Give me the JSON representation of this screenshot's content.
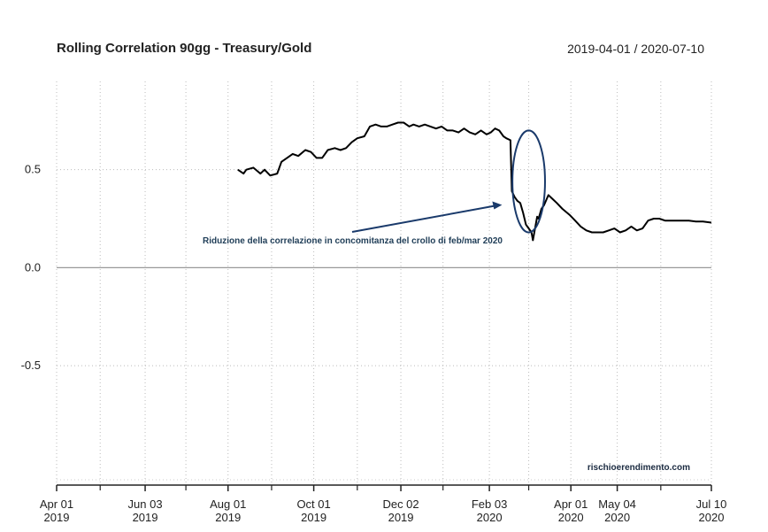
{
  "chart_data": {
    "type": "line",
    "title": "Rolling Correlation 90gg - Treasury/Gold",
    "date_range": "2019-04-01 / 2020-07-10",
    "ylim": [
      -1.1,
      0.95
    ],
    "y_ticks": [
      {
        "value": 0.5,
        "label": "0.5"
      },
      {
        "value": 0.0,
        "label": "0.0"
      },
      {
        "value": -0.5,
        "label": "-0.5"
      }
    ],
    "x_domain_days": [
      0,
      466
    ],
    "x_ticks": [
      {
        "day": 0,
        "label": [
          "Apr 01",
          "2019"
        ]
      },
      {
        "day": 63,
        "label": [
          "Jun 03",
          "2019"
        ]
      },
      {
        "day": 122,
        "label": [
          "Aug 01",
          "2019"
        ]
      },
      {
        "day": 183,
        "label": [
          "Oct 01",
          "2019"
        ]
      },
      {
        "day": 245,
        "label": [
          "Dec 02",
          "2019"
        ]
      },
      {
        "day": 308,
        "label": [
          "Feb 03",
          "2020"
        ]
      },
      {
        "day": 366,
        "label": [
          "Apr 01",
          "2020"
        ]
      },
      {
        "day": 399,
        "label": [
          "May 04",
          "2020"
        ]
      },
      {
        "day": 466,
        "label": [
          "Jul 10",
          "2020"
        ]
      }
    ],
    "minor_tick_days": [
      31,
      92,
      153,
      214,
      275,
      336,
      430
    ],
    "series": [
      {
        "name": "Rolling Correlation 90gg",
        "x": [
          129,
          133,
          135,
          140,
          145,
          148,
          152,
          157,
          160,
          164,
          168,
          172,
          177,
          181,
          185,
          189,
          193,
          198,
          202,
          206,
          210,
          214,
          219,
          223,
          227,
          231,
          235,
          239,
          243,
          247,
          251,
          254,
          258,
          262,
          266,
          270,
          274,
          278,
          282,
          286,
          290,
          294,
          298,
          302,
          306,
          309,
          312,
          315,
          318,
          320,
          323,
          324,
          326,
          328,
          330,
          332,
          333,
          334,
          336,
          338,
          339,
          341,
          342,
          343,
          345,
          347,
          350,
          353,
          356,
          360,
          365,
          369,
          373,
          377,
          381,
          385,
          389,
          393,
          397,
          401,
          405,
          409,
          413,
          417,
          421,
          425,
          429,
          433,
          437,
          441,
          445,
          450,
          455,
          460,
          466
        ],
        "values": [
          0.5,
          0.48,
          0.5,
          0.51,
          0.48,
          0.5,
          0.47,
          0.48,
          0.54,
          0.56,
          0.58,
          0.57,
          0.6,
          0.59,
          0.56,
          0.56,
          0.6,
          0.61,
          0.6,
          0.61,
          0.64,
          0.66,
          0.67,
          0.72,
          0.73,
          0.72,
          0.72,
          0.73,
          0.74,
          0.74,
          0.72,
          0.73,
          0.72,
          0.73,
          0.72,
          0.71,
          0.72,
          0.7,
          0.7,
          0.69,
          0.71,
          0.69,
          0.68,
          0.7,
          0.68,
          0.69,
          0.71,
          0.7,
          0.67,
          0.66,
          0.65,
          0.39,
          0.36,
          0.34,
          0.33,
          0.28,
          0.25,
          0.22,
          0.2,
          0.18,
          0.14,
          0.22,
          0.26,
          0.25,
          0.3,
          0.32,
          0.37,
          0.35,
          0.33,
          0.3,
          0.27,
          0.24,
          0.21,
          0.19,
          0.18,
          0.18,
          0.18,
          0.19,
          0.2,
          0.18,
          0.19,
          0.21,
          0.19,
          0.2,
          0.24,
          0.25,
          0.25,
          0.24,
          0.24,
          0.24,
          0.24,
          0.24,
          0.235,
          0.235,
          0.23
        ]
      }
    ],
    "annotation": {
      "text": "Riduzione della correlazione in concomitanza del crollo di feb/mar 2020",
      "arrow_to": {
        "day": 317,
        "value": 0.32
      },
      "ellipse_center": {
        "day": 336,
        "value": 0.44
      },
      "ellipse_radius": {
        "days": 11.6,
        "value": 0.26
      }
    },
    "watermark": "rischioerendimento.com",
    "colors": {
      "line": "#000000",
      "annotation": "#1a3a6b",
      "annotation_text": "#1f3d57",
      "grid": "#bbbbbb",
      "zero_line": "#999999"
    }
  }
}
